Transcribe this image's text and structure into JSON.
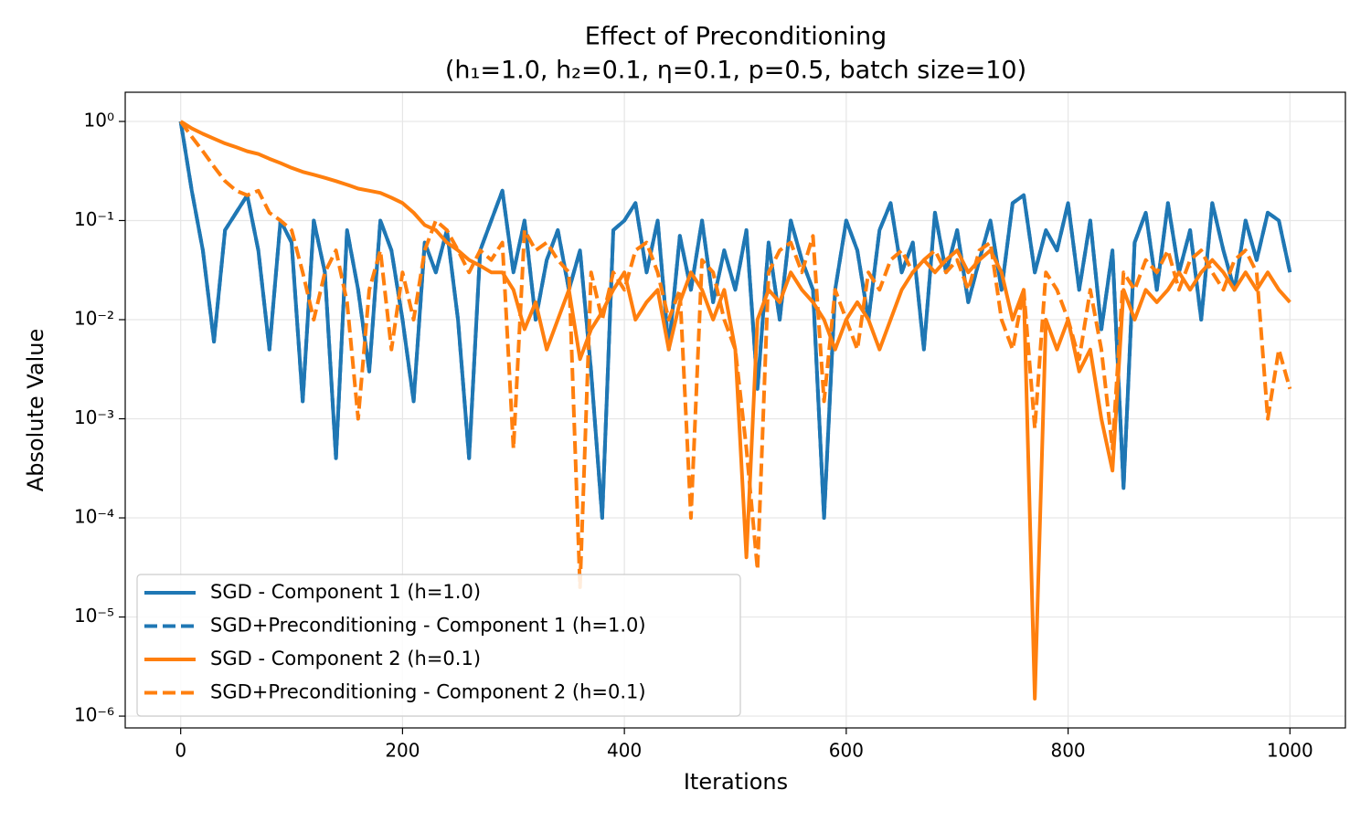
{
  "chart_data": {
    "type": "line",
    "title": "Effect of Preconditioning",
    "subtitle": "(h₁=1.0, h₂=0.1, η=0.1, p=0.5, batch size=10)",
    "x_label": "Iterations",
    "y_label": "Absolute Value",
    "log_y": true,
    "grid": true,
    "legend": "lower left",
    "xlim": [
      -50,
      1050
    ],
    "ylim": [
      7.6e-07,
      1.97
    ],
    "xticks": [
      0,
      200,
      400,
      600,
      800,
      1000
    ],
    "yticks": [
      {
        "value": 1,
        "label": "10⁰"
      },
      {
        "value": 0.1,
        "label": "10⁻¹"
      },
      {
        "value": 0.01,
        "label": "10⁻²"
      },
      {
        "value": 0.001,
        "label": "10⁻³"
      },
      {
        "value": 0.0001,
        "label": "10⁻⁴"
      },
      {
        "value": 1e-05,
        "label": "10⁻⁵"
      },
      {
        "value": 1e-06,
        "label": "10⁻⁶"
      }
    ],
    "x": [
      0,
      10,
      20,
      30,
      40,
      50,
      60,
      70,
      80,
      90,
      100,
      110,
      120,
      130,
      140,
      150,
      160,
      170,
      180,
      190,
      200,
      210,
      220,
      230,
      240,
      250,
      260,
      270,
      280,
      290,
      300,
      310,
      320,
      330,
      340,
      350,
      360,
      370,
      380,
      390,
      400,
      410,
      420,
      430,
      440,
      450,
      460,
      470,
      480,
      490,
      500,
      510,
      520,
      530,
      540,
      550,
      560,
      570,
      580,
      590,
      600,
      610,
      620,
      630,
      640,
      650,
      660,
      670,
      680,
      690,
      700,
      710,
      720,
      730,
      740,
      750,
      760,
      770,
      780,
      790,
      800,
      810,
      820,
      830,
      840,
      850,
      860,
      870,
      880,
      890,
      900,
      910,
      920,
      930,
      940,
      950,
      960,
      970,
      980,
      990,
      1000
    ],
    "series": [
      {
        "name": "SGD - Component 1 (h=1.0)",
        "color": "#1f77b4",
        "style": "solid",
        "values": [
          1,
          0.2,
          0.05,
          0.006,
          0.08,
          0.12,
          0.18,
          0.05,
          0.005,
          0.1,
          0.06,
          0.0015,
          0.1,
          0.03,
          0.0004,
          0.08,
          0.02,
          0.003,
          0.1,
          0.05,
          0.01,
          0.0015,
          0.06,
          0.03,
          0.08,
          0.01,
          0.0004,
          0.05,
          0.1,
          0.2,
          0.03,
          0.1,
          0.01,
          0.04,
          0.08,
          0.02,
          0.05,
          0.003,
          0.0001,
          0.08,
          0.1,
          0.15,
          0.03,
          0.1,
          0.005,
          0.07,
          0.02,
          0.1,
          0.015,
          0.05,
          0.02,
          0.08,
          0.002,
          0.06,
          0.01,
          0.1,
          0.04,
          0.02,
          0.0001,
          0.02,
          0.1,
          0.05,
          0.01,
          0.08,
          0.15,
          0.03,
          0.06,
          0.005,
          0.12,
          0.03,
          0.08,
          0.015,
          0.04,
          0.1,
          0.02,
          0.15,
          0.18,
          0.03,
          0.08,
          0.05,
          0.15,
          0.02,
          0.1,
          0.008,
          0.05,
          0.0002,
          0.06,
          0.12,
          0.02,
          0.15,
          0.03,
          0.08,
          0.01,
          0.15,
          0.05,
          0.02,
          0.1,
          0.04,
          0.12,
          0.1,
          0.03
        ]
      },
      {
        "name": "SGD+Preconditioning - Component 1 (h=1.0)",
        "color": "#1f77b4",
        "style": "dashed",
        "values": [
          1,
          0.2,
          0.05,
          0.006,
          0.08,
          0.12,
          0.18,
          0.05,
          0.005,
          0.1,
          0.06,
          0.0015,
          0.1,
          0.03,
          0.0004,
          0.08,
          0.02,
          0.003,
          0.1,
          0.05,
          0.01,
          0.0015,
          0.06,
          0.03,
          0.08,
          0.01,
          0.0004,
          0.05,
          0.1,
          0.2,
          0.03,
          0.1,
          0.01,
          0.04,
          0.08,
          0.02,
          0.05,
          0.003,
          0.0001,
          0.08,
          0.1,
          0.15,
          0.03,
          0.1,
          0.005,
          0.07,
          0.02,
          0.1,
          0.015,
          0.05,
          0.02,
          0.08,
          0.002,
          0.06,
          0.01,
          0.1,
          0.04,
          0.02,
          0.0001,
          0.02,
          0.1,
          0.05,
          0.01,
          0.08,
          0.15,
          0.03,
          0.06,
          0.005,
          0.12,
          0.03,
          0.08,
          0.015,
          0.04,
          0.1,
          0.02,
          0.15,
          0.18,
          0.03,
          0.08,
          0.05,
          0.15,
          0.02,
          0.1,
          0.008,
          0.05,
          0.0002,
          0.06,
          0.12,
          0.02,
          0.15,
          0.03,
          0.08,
          0.01,
          0.15,
          0.05,
          0.02,
          0.1,
          0.04,
          0.12,
          0.1,
          0.03
        ]
      },
      {
        "name": "SGD - Component 2 (h=0.1)",
        "color": "#ff7f0e",
        "style": "solid",
        "values": [
          1,
          0.85,
          0.75,
          0.67,
          0.6,
          0.55,
          0.5,
          0.47,
          0.42,
          0.38,
          0.34,
          0.31,
          0.29,
          0.27,
          0.25,
          0.23,
          0.21,
          0.2,
          0.19,
          0.17,
          0.15,
          0.12,
          0.09,
          0.08,
          0.06,
          0.05,
          0.04,
          0.035,
          0.03,
          0.03,
          0.02,
          0.008,
          0.015,
          0.005,
          0.01,
          0.02,
          0.004,
          0.008,
          0.012,
          0.02,
          0.03,
          0.01,
          0.015,
          0.02,
          0.005,
          0.015,
          0.03,
          0.02,
          0.01,
          0.02,
          0.005,
          4e-05,
          0.01,
          0.02,
          0.015,
          0.03,
          0.02,
          0.015,
          0.01,
          0.005,
          0.01,
          0.015,
          0.01,
          0.005,
          0.01,
          0.02,
          0.03,
          0.04,
          0.03,
          0.04,
          0.05,
          0.03,
          0.04,
          0.05,
          0.03,
          0.01,
          0.02,
          1.5e-06,
          0.01,
          0.005,
          0.01,
          0.003,
          0.005,
          0.001,
          0.0003,
          0.02,
          0.01,
          0.02,
          0.015,
          0.02,
          0.03,
          0.02,
          0.03,
          0.04,
          0.03,
          0.02,
          0.03,
          0.02,
          0.03,
          0.02,
          0.015
        ]
      },
      {
        "name": "SGD+Preconditioning - Component 2 (h=0.1)",
        "color": "#ff7f0e",
        "style": "dashed",
        "values": [
          1,
          0.7,
          0.5,
          0.35,
          0.25,
          0.2,
          0.18,
          0.2,
          0.12,
          0.1,
          0.08,
          0.03,
          0.01,
          0.03,
          0.05,
          0.015,
          0.001,
          0.02,
          0.05,
          0.005,
          0.03,
          0.01,
          0.05,
          0.1,
          0.08,
          0.05,
          0.03,
          0.05,
          0.04,
          0.06,
          0.0005,
          0.08,
          0.05,
          0.06,
          0.04,
          0.03,
          2e-05,
          0.03,
          0.01,
          0.03,
          0.02,
          0.05,
          0.06,
          0.03,
          0.01,
          0.02,
          0.0001,
          0.04,
          0.03,
          0.01,
          0.005,
          0.0005,
          3e-05,
          0.03,
          0.05,
          0.06,
          0.03,
          0.07,
          0.0015,
          0.02,
          0.01,
          0.005,
          0.03,
          0.02,
          0.04,
          0.05,
          0.03,
          0.04,
          0.05,
          0.03,
          0.04,
          0.02,
          0.05,
          0.06,
          0.01,
          0.005,
          0.02,
          0.0008,
          0.03,
          0.02,
          0.01,
          0.004,
          0.02,
          0.005,
          0.0005,
          0.03,
          0.02,
          0.04,
          0.03,
          0.05,
          0.02,
          0.04,
          0.05,
          0.03,
          0.02,
          0.04,
          0.05,
          0.03,
          0.001,
          0.005,
          0.002
        ]
      }
    ]
  }
}
